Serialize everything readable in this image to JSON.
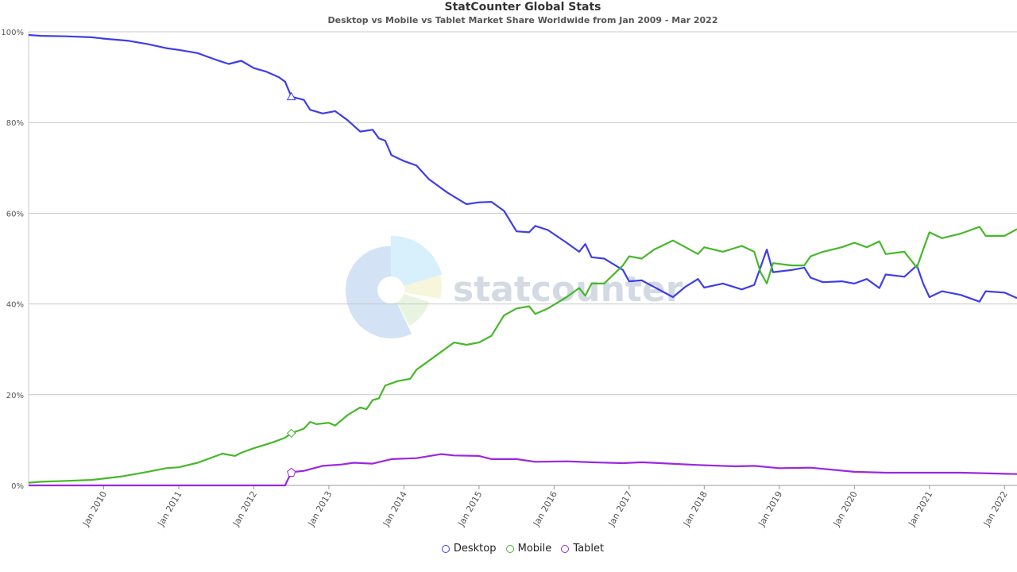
{
  "title": "StatCounter Global Stats",
  "subtitle": "Desktop vs Mobile vs Tablet Market Share Worldwide from Jan 2009 - Mar 2022",
  "watermark": "statcounter",
  "colors": {
    "desktop": "#3e3ee8",
    "mobile": "#46b829",
    "tablet": "#9b27e0",
    "grid": "#c8c8c8"
  },
  "legend": [
    {
      "label": "Desktop",
      "color": "#3e3ee8"
    },
    {
      "label": "Mobile",
      "color": "#46b829"
    },
    {
      "label": "Tablet",
      "color": "#9b27e0"
    }
  ],
  "chart_data": {
    "type": "line",
    "title": "StatCounter Global Stats",
    "subtitle": "Desktop vs Mobile vs Tablet Market Share Worldwide from Jan 2009 - Mar 2022",
    "y_ticks": [
      "0%",
      "20%",
      "40%",
      "60%",
      "80%",
      "100%"
    ],
    "ylim": [
      0,
      100
    ],
    "x_range": [
      "2009-01",
      "2022-03"
    ],
    "x_ticks": [
      {
        "label": "Jan 2010",
        "date": "2010-01"
      },
      {
        "label": "Jan 2011",
        "date": "2011-01"
      },
      {
        "label": "Jan 2012",
        "date": "2012-01"
      },
      {
        "label": "Jan 2013",
        "date": "2013-01"
      },
      {
        "label": "Jan 2014",
        "date": "2014-01"
      },
      {
        "label": "Jan 2015",
        "date": "2015-01"
      },
      {
        "label": "Jan 2016",
        "date": "2016-01"
      },
      {
        "label": "Jan 2017",
        "date": "2017-01"
      },
      {
        "label": "Jan 2018",
        "date": "2018-01"
      },
      {
        "label": "Jan 2019",
        "date": "2019-01"
      },
      {
        "label": "Jan 2020",
        "date": "2020-01"
      },
      {
        "label": "Jan 2021",
        "date": "2021-01"
      },
      {
        "label": "Jan 2022",
        "date": "2022-01"
      }
    ],
    "grid": true,
    "legend_position": "bottom-center",
    "series": [
      {
        "name": "Desktop",
        "color": "#3e3ee8",
        "marker": "triangle",
        "points": [
          [
            "2009-01",
            99.3
          ],
          [
            "2009-03",
            99.1
          ],
          [
            "2009-07",
            99.0
          ],
          [
            "2009-11",
            98.8
          ],
          [
            "2010-01",
            98.5
          ],
          [
            "2010-05",
            98.0
          ],
          [
            "2010-08",
            97.3
          ],
          [
            "2010-11",
            96.4
          ],
          [
            "2011-01",
            96.0
          ],
          [
            "2011-04",
            95.3
          ],
          [
            "2011-07",
            93.8
          ],
          [
            "2011-09",
            92.9
          ],
          [
            "2011-11",
            93.6
          ],
          [
            "2012-01",
            92.0
          ],
          [
            "2012-03",
            91.2
          ],
          [
            "2012-05",
            90.0
          ],
          [
            "2012-06",
            89.0
          ],
          [
            "2012-07",
            85.7
          ],
          [
            "2012-09",
            85.0
          ],
          [
            "2012-10",
            82.8
          ],
          [
            "2012-12",
            82.0
          ],
          [
            "2013-02",
            82.5
          ],
          [
            "2013-04",
            80.5
          ],
          [
            "2013-06",
            78.0
          ],
          [
            "2013-08",
            78.4
          ],
          [
            "2013-09",
            76.5
          ],
          [
            "2013-10",
            76.0
          ],
          [
            "2013-11",
            72.8
          ],
          [
            "2014-01",
            71.5
          ],
          [
            "2014-03",
            70.5
          ],
          [
            "2014-05",
            67.5
          ],
          [
            "2014-08",
            64.5
          ],
          [
            "2014-11",
            62.0
          ],
          [
            "2015-01",
            62.4
          ],
          [
            "2015-03",
            62.5
          ],
          [
            "2015-05",
            60.5
          ],
          [
            "2015-07",
            56.0
          ],
          [
            "2015-09",
            55.8
          ],
          [
            "2015-10",
            57.2
          ],
          [
            "2015-12",
            56.3
          ],
          [
            "2016-03",
            53.5
          ],
          [
            "2016-05",
            51.5
          ],
          [
            "2016-06",
            53.2
          ],
          [
            "2016-07",
            50.3
          ],
          [
            "2016-09",
            50.0
          ],
          [
            "2016-12",
            47.5
          ],
          [
            "2017-01",
            45.0
          ],
          [
            "2017-03",
            45.2
          ],
          [
            "2017-06",
            43.0
          ],
          [
            "2017-08",
            41.5
          ],
          [
            "2017-10",
            43.8
          ],
          [
            "2017-12",
            45.5
          ],
          [
            "2018-01",
            43.6
          ],
          [
            "2018-04",
            44.5
          ],
          [
            "2018-07",
            43.2
          ],
          [
            "2018-09",
            44.2
          ],
          [
            "2018-11",
            52.0
          ],
          [
            "2018-12",
            47.0
          ],
          [
            "2019-03",
            47.5
          ],
          [
            "2019-05",
            48.0
          ],
          [
            "2019-06",
            45.8
          ],
          [
            "2019-08",
            44.8
          ],
          [
            "2019-11",
            45.0
          ],
          [
            "2020-01",
            44.5
          ],
          [
            "2020-03",
            45.5
          ],
          [
            "2020-05",
            43.5
          ],
          [
            "2020-06",
            46.5
          ],
          [
            "2020-09",
            46.0
          ],
          [
            "2020-11",
            48.5
          ],
          [
            "2020-12",
            44.5
          ],
          [
            "2021-01",
            41.5
          ],
          [
            "2021-03",
            42.8
          ],
          [
            "2021-06",
            42.0
          ],
          [
            "2021-09",
            40.5
          ],
          [
            "2021-10",
            42.8
          ],
          [
            "2022-01",
            42.5
          ],
          [
            "2022-03",
            41.3
          ]
        ]
      },
      {
        "name": "Mobile",
        "color": "#46b829",
        "marker": "diamond",
        "points": [
          [
            "2009-01",
            0.6
          ],
          [
            "2009-03",
            0.8
          ],
          [
            "2009-07",
            1.0
          ],
          [
            "2009-11",
            1.2
          ],
          [
            "2010-01",
            1.5
          ],
          [
            "2010-04",
            2.0
          ],
          [
            "2010-08",
            3.0
          ],
          [
            "2010-11",
            3.8
          ],
          [
            "2011-01",
            4.0
          ],
          [
            "2011-04",
            5.0
          ],
          [
            "2011-07",
            6.5
          ],
          [
            "2011-08",
            7.0
          ],
          [
            "2011-10",
            6.5
          ],
          [
            "2011-11",
            7.2
          ],
          [
            "2012-01",
            8.2
          ],
          [
            "2012-04",
            9.5
          ],
          [
            "2012-06",
            10.5
          ],
          [
            "2012-07",
            11.5
          ],
          [
            "2012-09",
            12.5
          ],
          [
            "2012-10",
            14.0
          ],
          [
            "2012-11",
            13.5
          ],
          [
            "2013-01",
            13.8
          ],
          [
            "2013-02",
            13.2
          ],
          [
            "2013-04",
            15.5
          ],
          [
            "2013-06",
            17.2
          ],
          [
            "2013-07",
            16.8
          ],
          [
            "2013-08",
            18.8
          ],
          [
            "2013-09",
            19.2
          ],
          [
            "2013-10",
            22.0
          ],
          [
            "2013-12",
            23.0
          ],
          [
            "2014-02",
            23.5
          ],
          [
            "2014-03",
            25.5
          ],
          [
            "2014-06",
            28.5
          ],
          [
            "2014-09",
            31.5
          ],
          [
            "2014-11",
            31.0
          ],
          [
            "2015-01",
            31.5
          ],
          [
            "2015-03",
            33.0
          ],
          [
            "2015-05",
            37.5
          ],
          [
            "2015-07",
            39.0
          ],
          [
            "2015-09",
            39.5
          ],
          [
            "2015-10",
            37.8
          ],
          [
            "2015-12",
            39.0
          ],
          [
            "2016-03",
            41.5
          ],
          [
            "2016-05",
            43.5
          ],
          [
            "2016-06",
            41.8
          ],
          [
            "2016-07",
            44.5
          ],
          [
            "2016-09",
            44.5
          ],
          [
            "2016-12",
            48.5
          ],
          [
            "2017-01",
            50.5
          ],
          [
            "2017-03",
            50.0
          ],
          [
            "2017-05",
            52.0
          ],
          [
            "2017-08",
            54.0
          ],
          [
            "2017-10",
            52.5
          ],
          [
            "2017-12",
            51.0
          ],
          [
            "2018-01",
            52.5
          ],
          [
            "2018-04",
            51.5
          ],
          [
            "2018-07",
            52.8
          ],
          [
            "2018-09",
            51.5
          ],
          [
            "2018-10",
            47.0
          ],
          [
            "2018-11",
            44.5
          ],
          [
            "2018-12",
            49.0
          ],
          [
            "2019-03",
            48.5
          ],
          [
            "2019-05",
            48.5
          ],
          [
            "2019-06",
            50.5
          ],
          [
            "2019-08",
            51.5
          ],
          [
            "2019-11",
            52.5
          ],
          [
            "2020-01",
            53.5
          ],
          [
            "2020-03",
            52.5
          ],
          [
            "2020-05",
            53.8
          ],
          [
            "2020-06",
            51.0
          ],
          [
            "2020-09",
            51.5
          ],
          [
            "2020-11",
            48.0
          ],
          [
            "2020-12",
            52.0
          ],
          [
            "2021-01",
            55.8
          ],
          [
            "2021-03",
            54.5
          ],
          [
            "2021-06",
            55.5
          ],
          [
            "2021-09",
            57.0
          ],
          [
            "2021-10",
            55.0
          ],
          [
            "2022-01",
            55.0
          ],
          [
            "2022-03",
            56.5
          ]
        ]
      },
      {
        "name": "Tablet",
        "color": "#9b27e0",
        "marker": "pentagon",
        "points": [
          [
            "2009-01",
            0.0
          ],
          [
            "2012-06",
            0.0
          ],
          [
            "2012-07",
            2.9
          ],
          [
            "2012-09",
            3.2
          ],
          [
            "2012-12",
            4.3
          ],
          [
            "2013-03",
            4.6
          ],
          [
            "2013-05",
            5.0
          ],
          [
            "2013-08",
            4.8
          ],
          [
            "2013-11",
            5.8
          ],
          [
            "2014-03",
            6.0
          ],
          [
            "2014-07",
            6.9
          ],
          [
            "2014-09",
            6.6
          ],
          [
            "2015-01",
            6.5
          ],
          [
            "2015-03",
            5.8
          ],
          [
            "2015-07",
            5.8
          ],
          [
            "2015-10",
            5.2
          ],
          [
            "2016-03",
            5.3
          ],
          [
            "2016-07",
            5.1
          ],
          [
            "2016-12",
            4.9
          ],
          [
            "2017-03",
            5.1
          ],
          [
            "2017-06",
            4.9
          ],
          [
            "2017-12",
            4.5
          ],
          [
            "2018-06",
            4.2
          ],
          [
            "2018-09",
            4.3
          ],
          [
            "2019-01",
            3.8
          ],
          [
            "2019-06",
            3.9
          ],
          [
            "2020-01",
            3.0
          ],
          [
            "2020-06",
            2.8
          ],
          [
            "2021-01",
            2.8
          ],
          [
            "2021-06",
            2.8
          ],
          [
            "2022-03",
            2.5
          ]
        ]
      }
    ]
  }
}
